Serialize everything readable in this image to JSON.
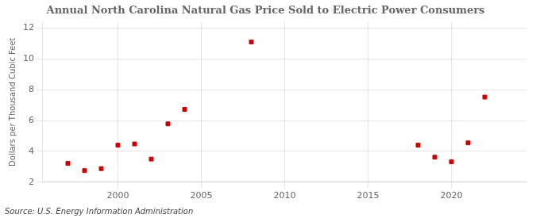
{
  "chart_data": {
    "type": "scatter",
    "title": "Annual North Carolina Natural Gas Price Sold to Electric Power Consumers",
    "y_label": "Dollars per Thousand Cubic Feet",
    "annotations": [
      "Source: U.S. Energy Information Administration"
    ],
    "x": [
      1997,
      1998,
      1999,
      2000,
      2001,
      2002,
      2003,
      2004,
      2008,
      2018,
      2019,
      2020,
      2021,
      2022
    ],
    "values": [
      3.22,
      2.75,
      2.88,
      4.4,
      4.48,
      3.5,
      5.78,
      6.72,
      11.1,
      4.4,
      3.62,
      3.32,
      4.55,
      7.52
    ],
    "color": "#cc0000",
    "marker": "square",
    "xlim": [
      1995.5,
      2024.5
    ],
    "xticks": [
      2000,
      2005,
      2010,
      2015,
      2020
    ],
    "ylim": [
      2,
      12.4
    ],
    "yticks": [
      2,
      4,
      6,
      8,
      10,
      12
    ],
    "grid": true
  }
}
